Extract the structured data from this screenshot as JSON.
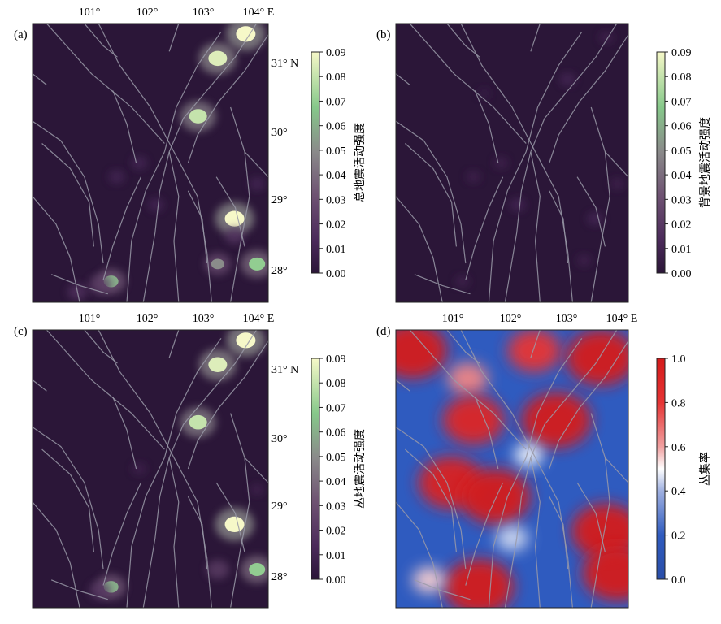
{
  "figure": {
    "panels": [
      {
        "label": "(a)",
        "kind": "intensity",
        "xticks": [
          "101°",
          "102°",
          "103°",
          "104° E"
        ],
        "yticks": [
          "31° N",
          "30°",
          "29°",
          "28°"
        ],
        "colorbar": {
          "label": "总地震活动强度",
          "ticks": [
            "0.09",
            "0.08",
            "0.07",
            "0.06",
            "0.05",
            "0.04",
            "0.03",
            "0.02",
            "0.01",
            "0.00"
          ]
        }
      },
      {
        "label": "(b)",
        "kind": "intensity",
        "xticks": [],
        "yticks": [],
        "colorbar": {
          "label": "背景地震活动强度",
          "ticks": [
            "0.09",
            "0.08",
            "0.07",
            "0.06",
            "0.05",
            "0.04",
            "0.03",
            "0.02",
            "0.01",
            "0.00"
          ]
        }
      },
      {
        "label": "(c)",
        "kind": "intensity",
        "xticks": [
          "101°",
          "102°",
          "103°",
          "104° E"
        ],
        "yticks": [
          "31° N",
          "30°",
          "29°",
          "28°"
        ],
        "colorbar": {
          "label": "丛地震活动强度",
          "ticks": [
            "0.09",
            "0.08",
            "0.07",
            "0.06",
            "0.05",
            "0.04",
            "0.03",
            "0.02",
            "0.01",
            "0.00"
          ]
        }
      },
      {
        "label": "(d)",
        "kind": "ratio",
        "xticks": [
          "101°",
          "102°",
          "103°",
          "104° E"
        ],
        "yticks": [],
        "colorbar": {
          "label": "丛集率",
          "ticks": [
            "1.0",
            "0.8",
            "0.6",
            "0.4",
            "0.2",
            "0.0"
          ]
        }
      }
    ]
  },
  "chart_data": [
    {
      "type": "heatmap",
      "panel": "a",
      "title": "总地震活动强度",
      "x_range": [
        100.0,
        104.2
      ],
      "y_range": [
        27.6,
        31.6
      ],
      "xlabel": "E",
      "ylabel": "N",
      "colorbar_range": [
        0.0,
        0.09
      ],
      "colormap": "dark purple → grey → green → pale yellow",
      "hotspots": [
        {
          "lon": 103.8,
          "lat": 31.45,
          "value": 0.09
        },
        {
          "lon": 103.3,
          "lat": 31.1,
          "value": 0.085
        },
        {
          "lon": 102.95,
          "lat": 30.27,
          "value": 0.08
        },
        {
          "lon": 103.6,
          "lat": 28.8,
          "value": 0.09
        },
        {
          "lon": 104.0,
          "lat": 28.15,
          "value": 0.07
        },
        {
          "lon": 103.3,
          "lat": 28.15,
          "value": 0.05
        },
        {
          "lon": 101.4,
          "lat": 27.9,
          "value": 0.06
        },
        {
          "lon": 101.2,
          "lat": 27.85,
          "value": 0.04
        },
        {
          "lon": 100.8,
          "lat": 27.75,
          "value": 0.03
        },
        {
          "lon": 101.9,
          "lat": 29.6,
          "value": 0.02
        },
        {
          "lon": 101.5,
          "lat": 29.4,
          "value": 0.02
        },
        {
          "lon": 102.2,
          "lat": 29.0,
          "value": 0.02
        },
        {
          "lon": 103.6,
          "lat": 28.55,
          "value": 0.03
        },
        {
          "lon": 104.0,
          "lat": 29.3,
          "value": 0.02
        }
      ]
    },
    {
      "type": "heatmap",
      "panel": "b",
      "title": "背景地震活动强度",
      "x_range": [
        100.0,
        104.2
      ],
      "y_range": [
        27.6,
        31.6
      ],
      "colorbar_range": [
        0.0,
        0.09
      ],
      "hotspots": [
        {
          "lon": 103.1,
          "lat": 30.8,
          "value": 0.02
        },
        {
          "lon": 102.2,
          "lat": 29.0,
          "value": 0.02
        },
        {
          "lon": 101.9,
          "lat": 29.6,
          "value": 0.015
        },
        {
          "lon": 101.4,
          "lat": 29.4,
          "value": 0.015
        },
        {
          "lon": 103.6,
          "lat": 28.8,
          "value": 0.02
        },
        {
          "lon": 101.2,
          "lat": 27.9,
          "value": 0.015
        },
        {
          "lon": 103.8,
          "lat": 31.4,
          "value": 0.015
        },
        {
          "lon": 104.0,
          "lat": 29.3,
          "value": 0.015
        },
        {
          "lon": 103.4,
          "lat": 28.2,
          "value": 0.015
        },
        {
          "lon": 101.6,
          "lat": 30.6,
          "value": 0.01
        }
      ]
    },
    {
      "type": "heatmap",
      "panel": "c",
      "title": "丛地震活动强度",
      "x_range": [
        100.0,
        104.2
      ],
      "y_range": [
        27.6,
        31.6
      ],
      "colorbar_range": [
        0.0,
        0.09
      ],
      "hotspots": [
        {
          "lon": 103.8,
          "lat": 31.45,
          "value": 0.09
        },
        {
          "lon": 103.3,
          "lat": 31.1,
          "value": 0.085
        },
        {
          "lon": 102.95,
          "lat": 30.27,
          "value": 0.08
        },
        {
          "lon": 103.6,
          "lat": 28.8,
          "value": 0.09
        },
        {
          "lon": 104.0,
          "lat": 28.15,
          "value": 0.07
        },
        {
          "lon": 103.3,
          "lat": 28.15,
          "value": 0.04
        },
        {
          "lon": 101.4,
          "lat": 27.9,
          "value": 0.06
        },
        {
          "lon": 101.2,
          "lat": 27.85,
          "value": 0.035
        },
        {
          "lon": 101.9,
          "lat": 29.6,
          "value": 0.015
        },
        {
          "lon": 104.0,
          "lat": 29.3,
          "value": 0.015
        }
      ]
    },
    {
      "type": "heatmap",
      "panel": "d",
      "title": "丛集率",
      "x_range": [
        100.0,
        104.2
      ],
      "y_range": [
        27.6,
        31.6
      ],
      "colorbar_range": [
        0.0,
        1.0
      ],
      "colormap": "blue (0.0) → white (0.5) → red (1.0)",
      "background_value": 0.2,
      "hotspots": [
        {
          "lon": 100.3,
          "lat": 31.3,
          "value": 1.0
        },
        {
          "lon": 102.5,
          "lat": 31.3,
          "value": 0.8
        },
        {
          "lon": 103.7,
          "lat": 31.2,
          "value": 1.0
        },
        {
          "lon": 101.3,
          "lat": 30.9,
          "value": 0.65
        },
        {
          "lon": 101.4,
          "lat": 30.3,
          "value": 0.9
        },
        {
          "lon": 102.9,
          "lat": 30.3,
          "value": 1.0
        },
        {
          "lon": 101.0,
          "lat": 29.4,
          "value": 0.95
        },
        {
          "lon": 101.8,
          "lat": 29.2,
          "value": 1.0
        },
        {
          "lon": 102.4,
          "lat": 29.8,
          "value": 0.5
        },
        {
          "lon": 103.8,
          "lat": 28.7,
          "value": 1.0
        },
        {
          "lon": 104.0,
          "lat": 28.1,
          "value": 1.0
        },
        {
          "lon": 101.5,
          "lat": 27.9,
          "value": 1.0
        },
        {
          "lon": 100.6,
          "lat": 28.0,
          "value": 0.55
        },
        {
          "lon": 102.1,
          "lat": 28.6,
          "value": 0.45
        }
      ]
    }
  ]
}
